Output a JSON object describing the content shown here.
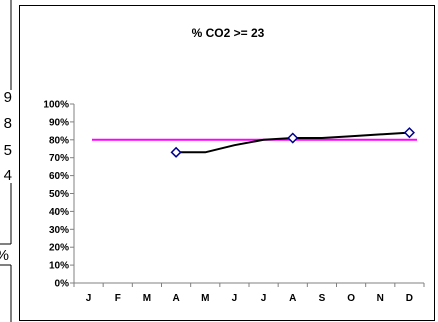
{
  "left_fragments": [
    "9",
    "8",
    "5",
    "4",
    "%"
  ],
  "colors": {
    "series": "#000000",
    "marker": "#00008b",
    "target": "#ff00ff",
    "axis": "#808080",
    "text": "#000000"
  },
  "chart_data": {
    "type": "line",
    "title": "% CO2 >= 23",
    "categories": [
      "J",
      "F",
      "M",
      "A",
      "M",
      "J",
      "J",
      "A",
      "S",
      "O",
      "N",
      "D"
    ],
    "series": [
      {
        "values": [
          null,
          null,
          null,
          73,
          73,
          77,
          80,
          81,
          81,
          82,
          83,
          84
        ],
        "marker_indices": [
          3,
          7,
          11
        ]
      }
    ],
    "target_line": 80,
    "yticks": [
      "100%",
      "90%",
      "80%",
      "70%",
      "60%",
      "50%",
      "40%",
      "30%",
      "20%",
      "10%",
      "0%"
    ],
    "ylim": [
      0,
      100
    ],
    "grid": false,
    "legend": "none"
  }
}
